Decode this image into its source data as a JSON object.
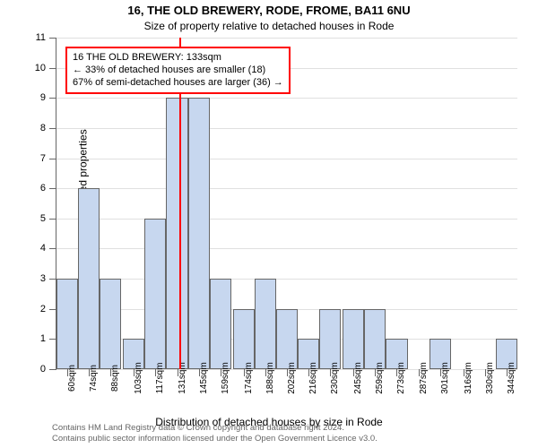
{
  "title_line1": "16, THE OLD BREWERY, RODE, FROME, BA11 6NU",
  "title_line2": "Size of property relative to detached houses in Rode",
  "xlabel": "Distribution of detached houses by size in Rode",
  "ylabel": "Number of detached properties",
  "chart": {
    "type": "histogram",
    "ylim": [
      0,
      11
    ],
    "ytick_step": 1,
    "bar_color": "#c7d7ef",
    "bar_border_color": "#666666",
    "grid_color": "#e0e0e0",
    "background_color": "#ffffff",
    "marker_color": "#ff0000",
    "marker_x": 133,
    "xlim": [
      53,
      351
    ],
    "categories": [
      "60sqm",
      "74sqm",
      "88sqm",
      "103sqm",
      "117sqm",
      "131sqm",
      "145sqm",
      "159sqm",
      "174sqm",
      "188sqm",
      "202sqm",
      "216sqm",
      "230sqm",
      "245sqm",
      "259sqm",
      "273sqm",
      "287sqm",
      "301sqm",
      "316sqm",
      "330sqm",
      "344sqm"
    ],
    "bar_centers": [
      60,
      74,
      88,
      103,
      117,
      131,
      145,
      159,
      174,
      188,
      202,
      216,
      230,
      245,
      259,
      273,
      287,
      301,
      316,
      330,
      344
    ],
    "values": [
      3,
      6,
      3,
      1,
      5,
      9,
      9,
      3,
      2,
      3,
      2,
      1,
      2,
      2,
      2,
      1,
      0,
      1,
      0,
      0,
      1
    ]
  },
  "info_box": {
    "border_color": "#ff0000",
    "line1": "16 THE OLD BREWERY: 133sqm",
    "line2": "← 33% of detached houses are smaller (18)",
    "line3": "67% of semi-detached houses are larger (36) →"
  },
  "footer": {
    "line1": "Contains HM Land Registry data © Crown copyright and database right 2024.",
    "line2": "Contains public sector information licensed under the Open Government Licence v3.0."
  }
}
